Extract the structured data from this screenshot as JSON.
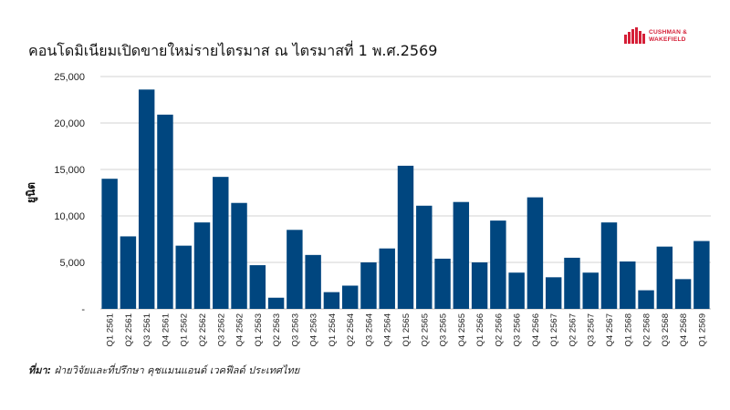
{
  "title": "คอนโดมิเนียมเปิดขายใหม่รายไตรมาส ณ ไตรมาสที่ 1 พ.ศ.2569",
  "logo": {
    "line1": "CUSHMAN &",
    "line2": "WAKEFIELD",
    "color": "#d51f37"
  },
  "source": {
    "label": "ที่มา:",
    "text": " ฝ่ายวิจัยและที่ปรึกษา คุชแมนแอนด์ เวคฟีลด์ ประเทศไทย"
  },
  "chart_data": {
    "type": "bar",
    "ylabel": "ยูนิต",
    "ylim": [
      0,
      25000
    ],
    "y_ticks": [
      0,
      5000,
      10000,
      15000,
      20000,
      25000
    ],
    "y_tick_labels": [
      "-",
      "5,000",
      "10,000",
      "15,000",
      "20,000",
      "25,000"
    ],
    "grid": true,
    "bar_color": "#00467f",
    "categories": [
      "Q1 2561",
      "Q2 2561",
      "Q3 2561",
      "Q4 2561",
      "Q1 2562",
      "Q2 2562",
      "Q3 2562",
      "Q4 2562",
      "Q1 2563",
      "Q2 2563",
      "Q3 2563",
      "Q4 2563",
      "Q1 2564",
      "Q2 2564",
      "Q3 2564",
      "Q4 2564",
      "Q1 2565",
      "Q2 2565",
      "Q3 2565",
      "Q4 2565",
      "Q1 2566",
      "Q2 2566",
      "Q3 2566",
      "Q4 2566",
      "Q1 2567",
      "Q2 2567",
      "Q3 2567",
      "Q4 2567",
      "Q1 2568",
      "Q2 2568",
      "Q3 2568",
      "Q4 2568",
      "Q1 2569"
    ],
    "values": [
      14000,
      7800,
      23600,
      20900,
      6800,
      9300,
      14200,
      11400,
      4700,
      1200,
      8500,
      5800,
      1800,
      2500,
      5000,
      6500,
      15400,
      11100,
      5400,
      11500,
      5000,
      9500,
      3900,
      12000,
      3400,
      5500,
      3900,
      9300,
      5100,
      2000,
      6700,
      3200,
      7300
    ]
  }
}
